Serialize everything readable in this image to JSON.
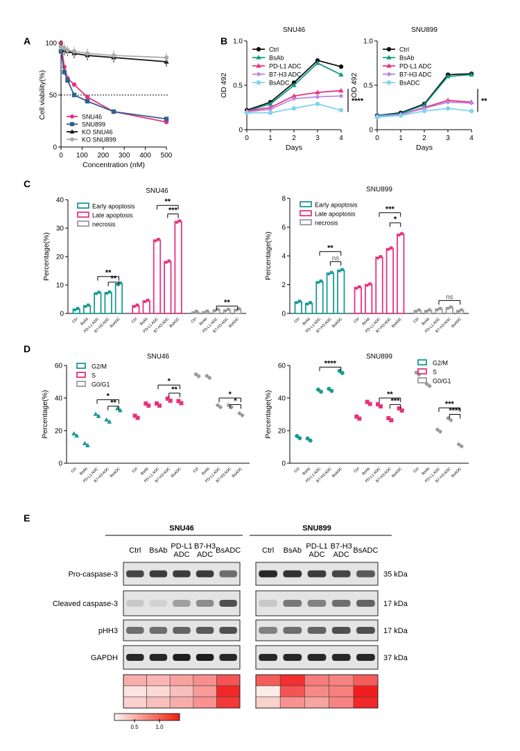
{
  "panel_labels": [
    "A",
    "B",
    "C",
    "D",
    "E"
  ],
  "colors": {
    "teal": "#1a9a93",
    "pink": "#e8327c",
    "blue": "#2f5f92",
    "black": "#111111",
    "gray": "#aaaaaa",
    "lightblue": "#7fd4ee",
    "violet": "#b987e8",
    "green": "#0f9a86"
  },
  "chart_data": [
    {
      "id": "A",
      "type": "line",
      "xlabel": "Concentration (nM)",
      "ylabel": "Cell viability(%)",
      "xlim": [
        0,
        500
      ],
      "ylim": [
        0,
        100
      ],
      "xticks": [
        0,
        100,
        200,
        300,
        400,
        500
      ],
      "yticks": [
        0,
        50,
        100
      ],
      "reference_line": 50,
      "x": [
        0,
        15.6,
        31.25,
        62.5,
        125,
        250,
        500
      ],
      "series": [
        {
          "name": "SNU46",
          "color": "#e8327c",
          "values": [
            100,
            77,
            66,
            60,
            48,
            34,
            24
          ]
        },
        {
          "name": "SNU899",
          "color": "#2f5f92",
          "values": [
            92,
            72,
            64,
            50,
            44,
            34,
            27
          ]
        },
        {
          "name": "KO SNU46",
          "color": "#111111",
          "values": [
            98,
            93,
            92,
            90,
            88,
            86,
            82
          ]
        },
        {
          "name": "KO SNU899",
          "color": "#aaaaaa",
          "values": [
            96,
            95,
            93,
            92,
            90,
            88,
            86
          ]
        }
      ]
    },
    {
      "id": "B-SNU46",
      "type": "line",
      "title": "SNU46",
      "xlabel": "Days",
      "ylabel": "OD 492",
      "xlim": [
        0,
        4
      ],
      "ylim": [
        0,
        1.0
      ],
      "xticks": [
        0,
        1,
        2,
        3,
        4
      ],
      "yticks": [
        "0",
        "0.5",
        "1.0"
      ],
      "significance": "****",
      "x": [
        0,
        1,
        2,
        3,
        4
      ],
      "series": [
        {
          "name": "Ctrl",
          "color": "#111111",
          "values": [
            0.22,
            0.31,
            0.53,
            0.78,
            0.71
          ]
        },
        {
          "name": "BsAb",
          "color": "#0f9a86",
          "values": [
            0.21,
            0.29,
            0.5,
            0.75,
            0.62
          ]
        },
        {
          "name": "PD-L1 ADC",
          "color": "#e8327c",
          "values": [
            0.21,
            0.25,
            0.38,
            0.42,
            0.44
          ]
        },
        {
          "name": "B7-H3 ADC",
          "color": "#b987e8",
          "values": [
            0.2,
            0.23,
            0.35,
            0.37,
            0.38
          ]
        },
        {
          "name": "BsADC",
          "color": "#7fd4ee",
          "values": [
            0.19,
            0.19,
            0.24,
            0.29,
            0.22
          ]
        }
      ]
    },
    {
      "id": "B-SNU899",
      "type": "line",
      "title": "SNU899",
      "xlabel": "Days",
      "ylabel": "OD 492",
      "xlim": [
        0,
        4
      ],
      "ylim": [
        0,
        1.0
      ],
      "xticks": [
        0,
        1,
        2,
        3,
        4
      ],
      "yticks": [
        "0",
        "0.5",
        "1.0"
      ],
      "significance": "**",
      "x": [
        0,
        1,
        2,
        3,
        4
      ],
      "series": [
        {
          "name": "Ctrl",
          "color": "#111111",
          "values": [
            0.16,
            0.19,
            0.29,
            0.62,
            0.63
          ]
        },
        {
          "name": "BsAb",
          "color": "#0f9a86",
          "values": [
            0.16,
            0.18,
            0.28,
            0.6,
            0.62
          ]
        },
        {
          "name": "PD-L1 ADC",
          "color": "#e8327c",
          "values": [
            0.15,
            0.17,
            0.25,
            0.33,
            0.31
          ]
        },
        {
          "name": "B7-H3 ADC",
          "color": "#b987e8",
          "values": [
            0.15,
            0.17,
            0.24,
            0.31,
            0.3
          ]
        },
        {
          "name": "BsADC",
          "color": "#7fd4ee",
          "values": [
            0.14,
            0.16,
            0.21,
            0.24,
            0.21
          ]
        }
      ]
    },
    {
      "id": "C-SNU46",
      "type": "bar",
      "title": "SNU46",
      "ylabel": "Percentage(%)",
      "ylim": [
        0,
        40
      ],
      "yticks": [
        0,
        10,
        20,
        30,
        40
      ],
      "categories": [
        "Ctrl",
        "BsAb",
        "PD-L1 ADC",
        "B7-H3 ADC",
        "BsADC"
      ],
      "series": [
        {
          "name": "Early apoptosis",
          "color": "#1a9a93",
          "values": [
            1.5,
            2.7,
            7.2,
            7.3,
            10.5
          ]
        },
        {
          "name": "Late apoptosis",
          "color": "#e8327c",
          "values": [
            2.7,
            4.4,
            25.8,
            18.2,
            32.3
          ]
        },
        {
          "name": "necrosis",
          "color": "#999999",
          "values": [
            0.5,
            0.6,
            1.2,
            1.2,
            1.4
          ]
        }
      ],
      "annotations": [
        {
          "group": 0,
          "from": 2,
          "to": 4,
          "label": "**",
          "level": 13
        },
        {
          "group": 0,
          "from": 3,
          "to": 4,
          "label": "**",
          "level": 11
        },
        {
          "group": 1,
          "from": 2,
          "to": 4,
          "label": "**",
          "level": 38
        },
        {
          "group": 1,
          "from": 3,
          "to": 4,
          "label": "***",
          "level": 35
        },
        {
          "group": 2,
          "from": 2,
          "to": 4,
          "label": "**",
          "level": 2.6
        }
      ]
    },
    {
      "id": "C-SNU899",
      "type": "bar",
      "title": "SNU899",
      "ylabel": "Percentage(%)",
      "ylim": [
        0,
        8
      ],
      "yticks": [
        0,
        2,
        4,
        6,
        8
      ],
      "categories": [
        "Ctrl",
        "BsAb",
        "PD-L1 ADC",
        "B7-H3 ADC",
        "BsADC"
      ],
      "series": [
        {
          "name": "Early apoptosis",
          "color": "#1a9a93",
          "values": [
            0.8,
            0.7,
            2.2,
            2.8,
            3.0
          ]
        },
        {
          "name": "Late apoptosis",
          "color": "#e8327c",
          "values": [
            1.8,
            2.0,
            3.9,
            4.5,
            5.5
          ]
        },
        {
          "name": "necrosis",
          "color": "#999999",
          "values": [
            0.2,
            0.2,
            0.3,
            0.4,
            0.2
          ]
        }
      ],
      "annotations": [
        {
          "group": 0,
          "from": 2,
          "to": 4,
          "label": "**",
          "level": 4.3
        },
        {
          "group": 0,
          "from": 3,
          "to": 4,
          "label": "ns",
          "level": 3.6
        },
        {
          "group": 1,
          "from": 2,
          "to": 4,
          "label": "***",
          "level": 7.0
        },
        {
          "group": 1,
          "from": 3,
          "to": 4,
          "label": "*",
          "level": 6.3
        },
        {
          "group": 2,
          "from": 2,
          "to": 4,
          "label": "ns",
          "level": 0.9
        }
      ]
    },
    {
      "id": "D-SNU46",
      "type": "scatter",
      "title": "SNU46",
      "ylabel": "Percentage(%)",
      "ylim": [
        0,
        60
      ],
      "yticks": [
        0,
        20,
        40,
        60
      ],
      "categories": [
        "Ctrl",
        "BsAb",
        "PD-L1 ADC",
        "B7-H3 ADC",
        "BsADC"
      ],
      "series": [
        {
          "name": "G2/M",
          "color": "#1a9a93",
          "marker": "triangle",
          "values": [
            17.5,
            11.5,
            29.5,
            26,
            33
          ]
        },
        {
          "name": "S",
          "color": "#e8327c",
          "marker": "square",
          "values": [
            28.5,
            36,
            36,
            39,
            37.5
          ]
        },
        {
          "name": "G0/G1",
          "color": "#999999",
          "marker": "diamond",
          "values": [
            54,
            53,
            35,
            35,
            30
          ]
        }
      ],
      "annotations": [
        {
          "group": 0,
          "from": 2,
          "to": 4,
          "label": "*",
          "level": 39
        },
        {
          "group": 0,
          "from": 3,
          "to": 4,
          "label": "**",
          "level": 35
        },
        {
          "group": 1,
          "from": 2,
          "to": 4,
          "label": "*",
          "level": 48
        },
        {
          "group": 1,
          "from": 3,
          "to": 4,
          "label": "**",
          "level": 43
        },
        {
          "group": 2,
          "from": 2,
          "to": 4,
          "label": "*",
          "level": 40
        },
        {
          "group": 2,
          "from": 3,
          "to": 4,
          "label": "*",
          "level": 36
        }
      ]
    },
    {
      "id": "D-SNU899",
      "type": "scatter",
      "title": "SNU899",
      "ylabel": "Percentage(%)",
      "ylim": [
        0,
        60
      ],
      "yticks": [
        0,
        20,
        40,
        60
      ],
      "categories": [
        "Ctrl",
        "BsAb",
        "PD-L1 ADC",
        "B7-H3 ADC",
        "BsADC"
      ],
      "series": [
        {
          "name": "G2/M",
          "color": "#1a9a93",
          "marker": "circle",
          "values": [
            16,
            14.5,
            44.5,
            45,
            56
          ]
        },
        {
          "name": "S",
          "color": "#e8327c",
          "marker": "square",
          "values": [
            28,
            37,
            35.5,
            27,
            33
          ]
        },
        {
          "name": "G0/G1",
          "color": "#999999",
          "marker": "diamond",
          "values": [
            55,
            48,
            20,
            27,
            11
          ]
        }
      ],
      "annotations": [
        {
          "group": 0,
          "from": 2,
          "to": 4,
          "label": "****",
          "level": 59
        },
        {
          "group": 1,
          "from": 2,
          "to": 4,
          "label": "**",
          "level": 40
        },
        {
          "group": 1,
          "from": 3,
          "to": 4,
          "label": "***",
          "level": 36
        },
        {
          "group": 2,
          "from": 2,
          "to": 4,
          "label": "***",
          "level": 34
        },
        {
          "group": 2,
          "from": 3,
          "to": 4,
          "label": "****",
          "level": 30
        }
      ]
    },
    {
      "id": "E-heatmap",
      "type": "heatmap",
      "scale_ticks": [
        "0.5",
        "1.0"
      ],
      "lanes": [
        "Ctrl",
        "BsAb",
        "PD-L1 ADC",
        "B7-H3 ADC",
        "BsADC"
      ],
      "SNU46": [
        [
          0.55,
          0.5,
          0.62,
          0.72,
          1.05
        ],
        [
          0.25,
          0.3,
          0.45,
          0.65,
          1.3
        ],
        [
          0.35,
          0.45,
          0.55,
          0.7,
          1.2
        ]
      ],
      "SNU899": [
        [
          1.0,
          1.25,
          0.82,
          0.78,
          1.0
        ],
        [
          0.2,
          1.05,
          0.75,
          0.8,
          1.35
        ],
        [
          0.35,
          0.7,
          0.6,
          0.78,
          1.3
        ]
      ]
    }
  ],
  "E": {
    "title_snu46": "SNU46",
    "title_snu899": "SNU899",
    "lanes": [
      "Ctrl",
      "BsAb",
      "PD-L1 ADC",
      "B7-H3 ADC",
      "BsADC"
    ],
    "rows": [
      {
        "name": "Pro-caspase-3",
        "kda": "35 kDa"
      },
      {
        "name": "Cleaved caspase-3",
        "kda": "17 kDa"
      },
      {
        "name": "pHH3",
        "kda": "17 kDa"
      },
      {
        "name": "GAPDH",
        "kda": "37 kDa"
      }
    ]
  }
}
